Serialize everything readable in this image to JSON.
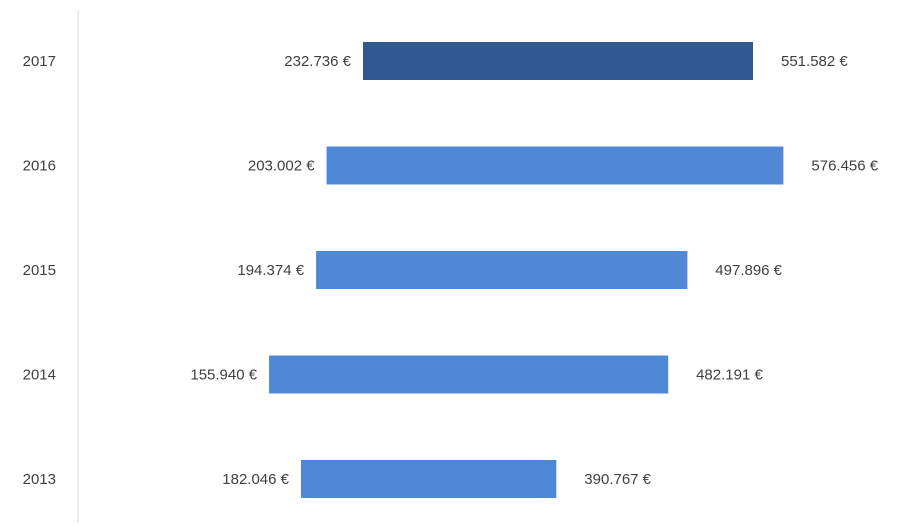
{
  "chart_data": {
    "type": "bar",
    "orientation": "horizontal",
    "subtype": "floating-range",
    "categories": [
      "2017",
      "2016",
      "2015",
      "2014",
      "2013"
    ],
    "series": [
      {
        "start": [
          232736,
          203002,
          194374,
          155940,
          182046
        ],
        "end": [
          551582,
          576456,
          497896,
          482191,
          390767
        ],
        "start_labels": [
          "232.736 €",
          "203.002 €",
          "194.374 €",
          "155.940 €",
          "182.046 €"
        ],
        "end_labels": [
          "551.582 €",
          "576.456 €",
          "497.896 €",
          "482.191 €",
          "390.767 €"
        ],
        "colors": [
          "#2f5a91",
          "#4f89d6",
          "#4f89d6",
          "#4f89d6",
          "#4f89d6"
        ]
      }
    ],
    "xlim": [
      0,
      640000
    ],
    "title": "",
    "xlabel": "",
    "ylabel": "",
    "grid": false,
    "legend": "none",
    "axis_color": "#d9d9d9",
    "text_color": "#404040"
  }
}
